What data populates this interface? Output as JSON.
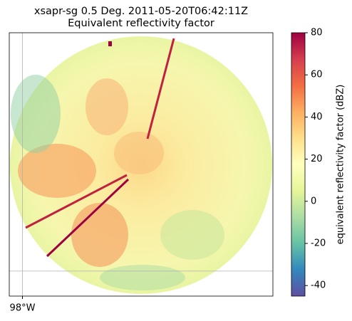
{
  "chart_data": {
    "type": "ppi",
    "title": "xsapr-sg 0.5 Deg. 2011-05-20T06:42:11Z",
    "subtitle": "Equivalent reflectivity factor",
    "xlim": [
      -98.05,
      -97.05
    ],
    "xticks": [
      {
        "value": -98,
        "label": "98°W"
      }
    ],
    "ylim": [
      36.105,
      37.105
    ],
    "yticks": [
      {
        "value": 36.2,
        "label": null
      }
    ],
    "grid": true,
    "colorbar": {
      "label": "equivalent reflectivity factor (dBZ)",
      "lim": [
        -45,
        80
      ],
      "ticks": [
        -40,
        -20,
        0,
        20,
        40,
        60,
        80
      ],
      "colormap": [
        "#5e4fa2",
        "#3288bd",
        "#66c2a5",
        "#abdda4",
        "#e6f598",
        "#ffffbf",
        "#fee08b",
        "#fdae61",
        "#f46d43",
        "#d53e4f",
        "#9e0142"
      ]
    }
  }
}
